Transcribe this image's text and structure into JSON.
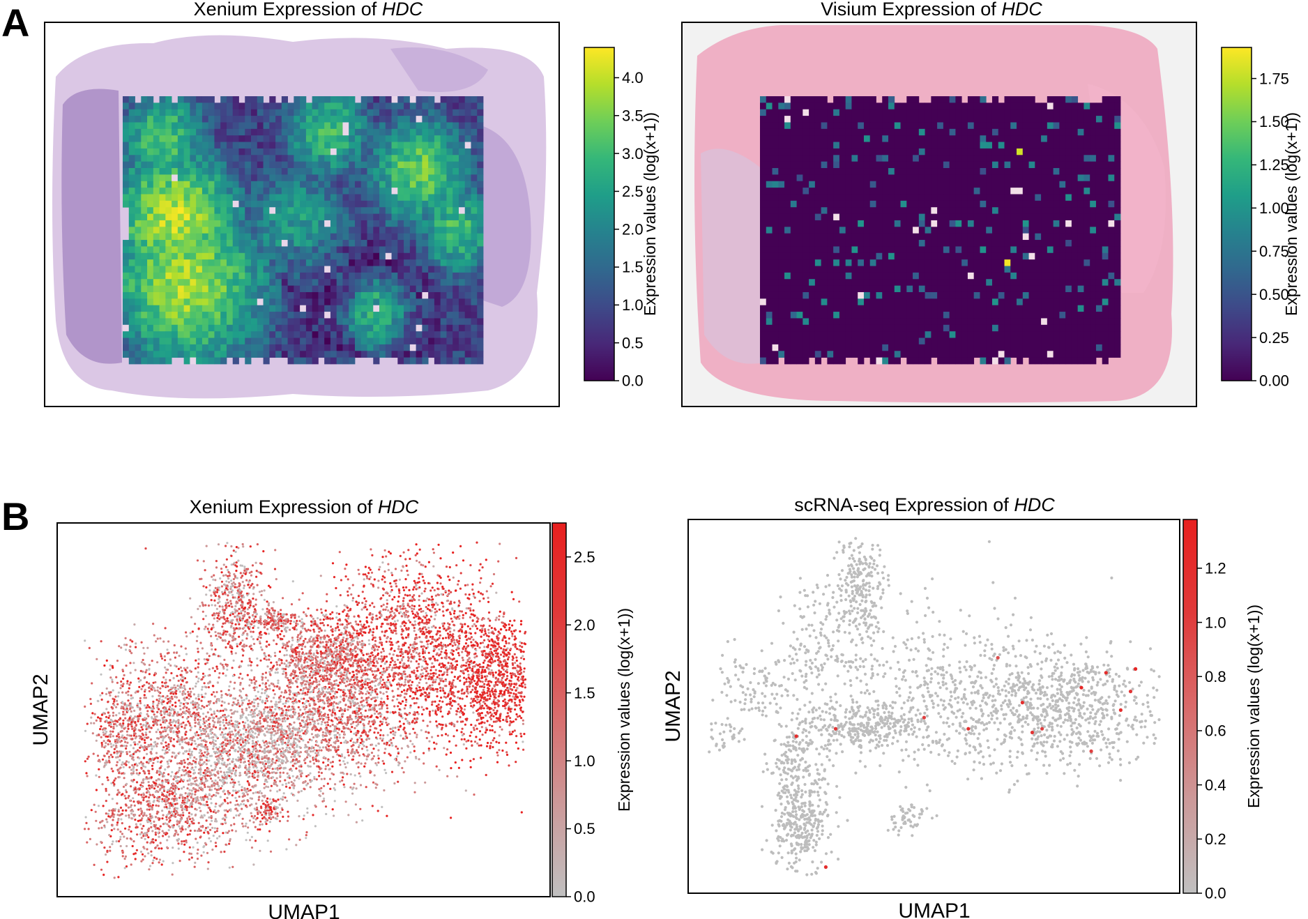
{
  "panel_labels": [
    "A",
    "B"
  ],
  "colors": {
    "viridis": [
      "#440154",
      "#482878",
      "#3e4a89",
      "#31688e",
      "#26828e",
      "#1f9e89",
      "#35b779",
      "#6ece58",
      "#b5de2b",
      "#fde725"
    ],
    "grey_red": [
      "#c0c0c0",
      "#cc9999",
      "#d96a6a",
      "#e03a3a",
      "#e8201f"
    ],
    "he_purple": "#cfb4dc",
    "he_pink": "#efa4bd",
    "umap_grey": "#bdbdbd",
    "umap_red": "#e5322d"
  },
  "chart_data": [
    {
      "id": "A-left",
      "type": "heatmap",
      "title_prefix": "Xenium Expression of ",
      "title_gene": "HDC",
      "colorbar_label": "Expression values (log(x+1))",
      "colormap": "viridis",
      "vmin": 0.0,
      "vmax": 4.4,
      "ticks": [
        "0.0",
        "0.5",
        "1.0",
        "1.5",
        "2.0",
        "2.5",
        "3.0",
        "3.5",
        "4.0"
      ],
      "tick_values": [
        0.0,
        0.5,
        1.0,
        1.5,
        2.0,
        2.5,
        3.0,
        3.5,
        4.0
      ],
      "grid_cols": 59,
      "grid_rows": 41,
      "pattern": "high expression on left and upper-right regions, low in center-right",
      "hotspots": [
        {
          "col": 8,
          "row": 18,
          "value": 3.9,
          "spread": 9
        },
        {
          "col": 10,
          "row": 28,
          "value": 3.8,
          "spread": 11
        },
        {
          "col": 6,
          "row": 6,
          "value": 3.2,
          "spread": 6
        },
        {
          "col": 33,
          "row": 5,
          "value": 3.0,
          "spread": 6
        },
        {
          "col": 48,
          "row": 11,
          "value": 3.4,
          "spread": 7
        },
        {
          "col": 54,
          "row": 20,
          "value": 3.0,
          "spread": 6
        },
        {
          "col": 28,
          "row": 19,
          "value": 2.4,
          "spread": 8
        },
        {
          "col": 41,
          "row": 33,
          "value": 3.1,
          "spread": 5
        }
      ],
      "baseline": 0.9
    },
    {
      "id": "A-right",
      "type": "heatmap",
      "title_prefix": "Visium Expression of ",
      "title_gene": "HDC",
      "colorbar_label": "Expression values (log(x+1))",
      "colormap": "viridis",
      "vmin": 0.0,
      "vmax": 1.93,
      "ticks": [
        "0.00",
        "0.25",
        "0.50",
        "0.75",
        "1.00",
        "1.25",
        "1.50",
        "1.75"
      ],
      "tick_values": [
        0.0,
        0.25,
        0.5,
        0.75,
        1.0,
        1.25,
        1.5,
        1.75
      ],
      "grid_cols": 59,
      "grid_rows": 41,
      "pattern": "mostly zero with sparse low-expression spots",
      "sparse_fraction": 0.07,
      "peak_spots": [
        {
          "col": 40,
          "row": 25,
          "value": 1.9
        },
        {
          "col": 42,
          "row": 8,
          "value": 1.8
        }
      ]
    },
    {
      "id": "B-left",
      "type": "scatter",
      "title_prefix": "Xenium Expression of ",
      "title_gene": "HDC",
      "xlabel": "UMAP1",
      "ylabel": "UMAP2",
      "colorbar_label": "Expression values (log(x+1))",
      "colormap": "grey-red",
      "vmin": 0.0,
      "vmax": 2.75,
      "ticks": [
        "0.0",
        "0.5",
        "1.0",
        "1.5",
        "2.0",
        "2.5"
      ],
      "tick_values": [
        0.0,
        0.5,
        1.0,
        1.5,
        2.0,
        2.5
      ],
      "n_points_rendered": 9000,
      "clusters": [
        {
          "cx": 0.57,
          "cy": 0.52,
          "sx": 0.08,
          "sy": 0.1,
          "w": 0.14,
          "expr": 1.1
        },
        {
          "cx": 0.54,
          "cy": 0.36,
          "sx": 0.055,
          "sy": 0.06,
          "w": 0.09,
          "expr": 1.2
        },
        {
          "cx": 0.22,
          "cy": 0.5,
          "sx": 0.07,
          "sy": 0.09,
          "w": 0.09,
          "expr": 1.2
        },
        {
          "cx": 0.22,
          "cy": 0.76,
          "sx": 0.07,
          "sy": 0.08,
          "w": 0.1,
          "expr": 1.3
        },
        {
          "cx": 0.33,
          "cy": 0.63,
          "sx": 0.07,
          "sy": 0.1,
          "w": 0.1,
          "expr": 0.6
        },
        {
          "cx": 0.44,
          "cy": 0.58,
          "sx": 0.06,
          "sy": 0.07,
          "w": 0.08,
          "expr": 0.5
        },
        {
          "cx": 0.36,
          "cy": 0.23,
          "sx": 0.035,
          "sy": 0.08,
          "w": 0.06,
          "expr": 1.2
        },
        {
          "cx": 0.13,
          "cy": 0.56,
          "sx": 0.025,
          "sy": 0.06,
          "w": 0.03,
          "expr": 1.2
        },
        {
          "cx": 0.44,
          "cy": 0.26,
          "sx": 0.02,
          "sy": 0.015,
          "w": 0.015,
          "expr": 1.5
        },
        {
          "cx": 0.43,
          "cy": 0.77,
          "sx": 0.015,
          "sy": 0.02,
          "w": 0.01,
          "expr": 1.5
        },
        {
          "cx": 0.72,
          "cy": 0.33,
          "sx": 0.09,
          "sy": 0.12,
          "w": 0.17,
          "expr": 1.9
        },
        {
          "cx": 0.89,
          "cy": 0.43,
          "sx": 0.06,
          "sy": 0.09,
          "w": 0.12,
          "expr": 2.3
        }
      ]
    },
    {
      "id": "B-right",
      "type": "scatter",
      "title_prefix": "scRNA-seq Expression of ",
      "title_gene": "HDC",
      "xlabel": "UMAP1",
      "ylabel": "UMAP2",
      "colorbar_label": "Expression values (log(x+1))",
      "colormap": "grey-red",
      "vmin": 0.0,
      "vmax": 1.38,
      "ticks": [
        "0.0",
        "0.2",
        "0.4",
        "0.6",
        "0.8",
        "1.0",
        "1.2"
      ],
      "tick_values": [
        0.0,
        0.2,
        0.4,
        0.6,
        0.8,
        1.0,
        1.2
      ],
      "n_points_rendered": 2600,
      "clusters": [
        {
          "cx": 0.74,
          "cy": 0.5,
          "sx": 0.12,
          "sy": 0.08,
          "w": 0.36
        },
        {
          "cx": 0.36,
          "cy": 0.55,
          "sx": 0.06,
          "sy": 0.03,
          "w": 0.12
        },
        {
          "cx": 0.23,
          "cy": 0.8,
          "sx": 0.03,
          "sy": 0.08,
          "w": 0.14
        },
        {
          "cx": 0.35,
          "cy": 0.18,
          "sx": 0.025,
          "sy": 0.08,
          "w": 0.1
        },
        {
          "cx": 0.26,
          "cy": 0.35,
          "sx": 0.04,
          "sy": 0.08,
          "w": 0.05
        },
        {
          "cx": 0.13,
          "cy": 0.45,
          "sx": 0.04,
          "sy": 0.05,
          "w": 0.04
        },
        {
          "cx": 0.48,
          "cy": 0.43,
          "sx": 0.12,
          "sy": 0.12,
          "w": 0.12
        },
        {
          "cx": 0.45,
          "cy": 0.8,
          "sx": 0.02,
          "sy": 0.02,
          "w": 0.02
        },
        {
          "cx": 0.08,
          "cy": 0.58,
          "sx": 0.02,
          "sy": 0.02,
          "w": 0.01
        },
        {
          "cx": 0.22,
          "cy": 0.63,
          "sx": 0.03,
          "sy": 0.05,
          "w": 0.04
        }
      ],
      "red_points": [
        {
          "x": 0.22,
          "y": 0.58,
          "value": 1.2
        },
        {
          "x": 0.3,
          "y": 0.56,
          "value": 1.1
        },
        {
          "x": 0.48,
          "y": 0.53,
          "value": 1.0
        },
        {
          "x": 0.57,
          "y": 0.56,
          "value": 1.2
        },
        {
          "x": 0.63,
          "y": 0.37,
          "value": 0.9
        },
        {
          "x": 0.68,
          "y": 0.49,
          "value": 1.2
        },
        {
          "x": 0.7,
          "y": 0.57,
          "value": 1.1
        },
        {
          "x": 0.72,
          "y": 0.56,
          "value": 1.0
        },
        {
          "x": 0.8,
          "y": 0.45,
          "value": 1.3
        },
        {
          "x": 0.85,
          "y": 0.41,
          "value": 1.2
        },
        {
          "x": 0.91,
          "y": 0.4,
          "value": 1.3
        },
        {
          "x": 0.9,
          "y": 0.46,
          "value": 1.1
        },
        {
          "x": 0.88,
          "y": 0.51,
          "value": 1.2
        },
        {
          "x": 0.82,
          "y": 0.62,
          "value": 1.0
        },
        {
          "x": 0.28,
          "y": 0.93,
          "value": 1.2
        }
      ]
    }
  ]
}
